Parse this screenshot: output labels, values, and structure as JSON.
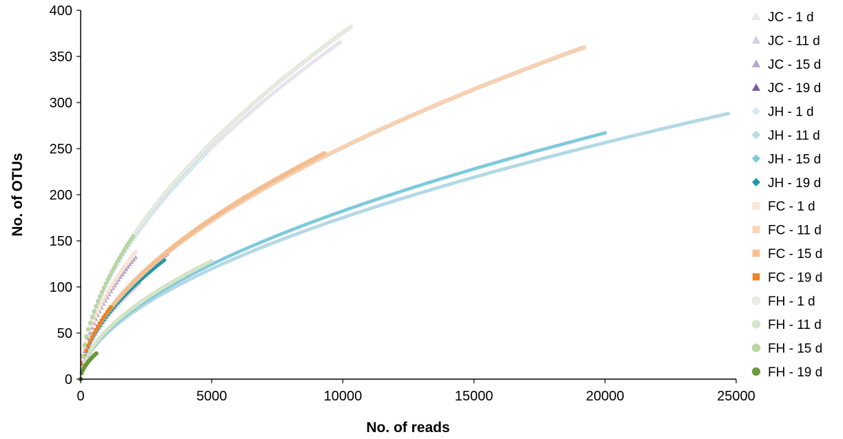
{
  "chart_data": {
    "type": "scatter",
    "title": "",
    "xlabel": "No. of reads",
    "ylabel": "No. of OTUs",
    "xlim": [
      0,
      25000
    ],
    "ylim": [
      0,
      400
    ],
    "xticks": [
      "0",
      "5000",
      "10000",
      "15000",
      "20000",
      "25000"
    ],
    "yticks": [
      "0",
      "50",
      "100",
      "150",
      "200",
      "250",
      "300",
      "350",
      "400"
    ],
    "grid": false,
    "legend_position": "right",
    "series": [
      {
        "name": "JC - 1 d",
        "marker": "triangle",
        "color": "#ece7f2",
        "x_max": 9900,
        "y_max": 366
      },
      {
        "name": "JC - 11 d",
        "marker": "triangle",
        "color": "#d8cce6",
        "x_max": 2250,
        "y_max": 104
      },
      {
        "name": "JC - 15 d",
        "marker": "triangle",
        "color": "#b9a6d0",
        "x_max": 2100,
        "y_max": 132
      },
      {
        "name": "JC - 19 d",
        "marker": "triangle",
        "color": "#7f5f9e",
        "x_max": 3300,
        "y_max": 136
      },
      {
        "name": "JH - 1 d",
        "marker": "diamond",
        "color": "#d6ecf5",
        "x_max": 4800,
        "y_max": 245
      },
      {
        "name": "JH - 11 d",
        "marker": "diamond",
        "color": "#b4dcea",
        "x_max": 24700,
        "y_max": 288
      },
      {
        "name": "JH - 15 d",
        "marker": "diamond",
        "color": "#7ccde0",
        "x_max": 20000,
        "y_max": 267
      },
      {
        "name": "JH - 19 d",
        "marker": "diamond",
        "color": "#1a9aa6",
        "x_max": 3200,
        "y_max": 129
      },
      {
        "name": "FC - 1 d",
        "marker": "square",
        "color": "#fde6d8",
        "x_max": 2100,
        "y_max": 138
      },
      {
        "name": "FC - 11 d",
        "marker": "square",
        "color": "#fdd5b4",
        "x_max": 19200,
        "y_max": 360
      },
      {
        "name": "FC - 15 d",
        "marker": "square",
        "color": "#fbc08e",
        "x_max": 9300,
        "y_max": 245
      },
      {
        "name": "FC - 19 d",
        "marker": "square",
        "color": "#f0821f",
        "x_max": 1150,
        "y_max": 78
      },
      {
        "name": "FH - 1 d",
        "marker": "circle",
        "color": "#e8ede2",
        "x_max": 10300,
        "y_max": 382
      },
      {
        "name": "FH - 11 d",
        "marker": "circle",
        "color": "#d6e8c9",
        "x_max": 5000,
        "y_max": 128
      },
      {
        "name": "FH - 15 d",
        "marker": "circle",
        "color": "#b8d9a0",
        "x_max": 2000,
        "y_max": 155
      },
      {
        "name": "FH - 19 d",
        "marker": "circle",
        "color": "#6b9a3c",
        "x_max": 600,
        "y_max": 28
      }
    ]
  }
}
